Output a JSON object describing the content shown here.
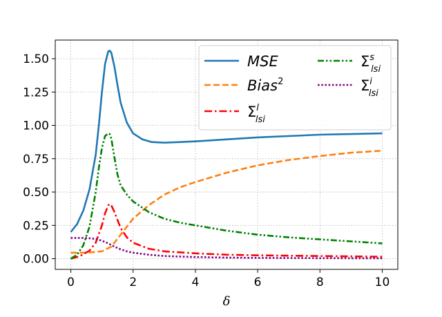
{
  "chart_data": {
    "type": "line",
    "xlabel": "δ",
    "ylabel": "",
    "xlim": [
      -0.5,
      10.5
    ],
    "ylim": [
      -0.08,
      1.64
    ],
    "xticks": [
      0,
      2,
      4,
      6,
      8,
      10
    ],
    "yticks": [
      0.0,
      0.25,
      0.5,
      0.75,
      1.0,
      1.25,
      1.5
    ],
    "xtick_labels": [
      "0",
      "2",
      "4",
      "6",
      "8",
      "10"
    ],
    "ytick_labels": [
      "0.00",
      "0.25",
      "0.50",
      "0.75",
      "1.00",
      "1.25",
      "1.50"
    ],
    "grid": true,
    "legend_position": "top-right",
    "legend_columns": 2,
    "series": [
      {
        "name": "MSE",
        "label_main": "MSE",
        "label_sup": "",
        "label_sub": "",
        "color": "#1f77b4",
        "dash": "solid",
        "x": [
          0,
          0.2,
          0.4,
          0.6,
          0.8,
          0.9,
          1.0,
          1.1,
          1.2,
          1.25,
          1.3,
          1.4,
          1.5,
          1.6,
          1.8,
          2.0,
          2.3,
          2.6,
          3.0,
          3.5,
          4.0,
          5.0,
          6.0,
          7.0,
          8.0,
          9.0,
          10.0
        ],
        "y": [
          0.2,
          0.26,
          0.36,
          0.52,
          0.78,
          1.0,
          1.25,
          1.46,
          1.555,
          1.56,
          1.545,
          1.44,
          1.3,
          1.17,
          1.02,
          0.94,
          0.895,
          0.875,
          0.87,
          0.875,
          0.88,
          0.895,
          0.91,
          0.92,
          0.93,
          0.935,
          0.94
        ]
      },
      {
        "name": "Bias^2",
        "label_main": "Bias",
        "label_sup": "2",
        "label_sub": "",
        "color": "#ff7f0e",
        "dash": "dashed",
        "x": [
          0,
          0.5,
          1.0,
          1.3,
          1.6,
          2.0,
          2.5,
          3.0,
          3.5,
          4.0,
          5.0,
          6.0,
          7.0,
          8.0,
          9.0,
          10.0
        ],
        "y": [
          0.045,
          0.045,
          0.055,
          0.09,
          0.18,
          0.3,
          0.4,
          0.48,
          0.535,
          0.575,
          0.645,
          0.7,
          0.74,
          0.77,
          0.795,
          0.81
        ]
      },
      {
        "name": "Σ^l_lsi",
        "label_main": "Σ",
        "label_sup": "l",
        "label_sub": "lsi",
        "color": "#ff0000",
        "dash": "dashdot",
        "x": [
          0,
          0.3,
          0.6,
          0.8,
          1.0,
          1.1,
          1.2,
          1.25,
          1.3,
          1.4,
          1.5,
          1.6,
          1.8,
          2.0,
          2.5,
          3.0,
          4.0,
          5.0,
          6.0,
          8.0,
          10.0
        ],
        "y": [
          0.0,
          0.02,
          0.06,
          0.12,
          0.25,
          0.34,
          0.4,
          0.41,
          0.4,
          0.35,
          0.29,
          0.23,
          0.16,
          0.12,
          0.075,
          0.055,
          0.04,
          0.03,
          0.025,
          0.02,
          0.015
        ]
      },
      {
        "name": "Σ^s_lsi",
        "label_main": "Σ",
        "label_sup": "s",
        "label_sub": "lsi",
        "color": "#007f00",
        "dash": "dashdotdot",
        "x": [
          0,
          0.2,
          0.4,
          0.6,
          0.8,
          0.9,
          1.0,
          1.1,
          1.2,
          1.25,
          1.3,
          1.4,
          1.5,
          1.6,
          1.8,
          2.0,
          2.5,
          3.0,
          3.5,
          4.0,
          5.0,
          6.0,
          7.0,
          8.0,
          9.0,
          10.0
        ],
        "y": [
          0.0,
          0.03,
          0.1,
          0.24,
          0.5,
          0.68,
          0.83,
          0.92,
          0.94,
          0.935,
          0.9,
          0.76,
          0.63,
          0.55,
          0.48,
          0.43,
          0.35,
          0.3,
          0.27,
          0.25,
          0.21,
          0.18,
          0.16,
          0.145,
          0.13,
          0.115
        ]
      },
      {
        "name": "Σ^i_lsi",
        "label_main": "Σ",
        "label_sup": "i",
        "label_sub": "lsi",
        "color": "#800080",
        "dash": "dotted",
        "x": [
          0,
          0.4,
          0.6,
          0.8,
          1.0,
          1.2,
          1.4,
          1.6,
          1.8,
          2.0,
          2.5,
          3.0,
          4.0,
          5.0,
          6.0,
          8.0,
          10.0
        ],
        "y": [
          0.155,
          0.155,
          0.153,
          0.148,
          0.135,
          0.115,
          0.09,
          0.07,
          0.055,
          0.045,
          0.03,
          0.02,
          0.012,
          0.008,
          0.006,
          0.004,
          0.003
        ]
      }
    ]
  }
}
